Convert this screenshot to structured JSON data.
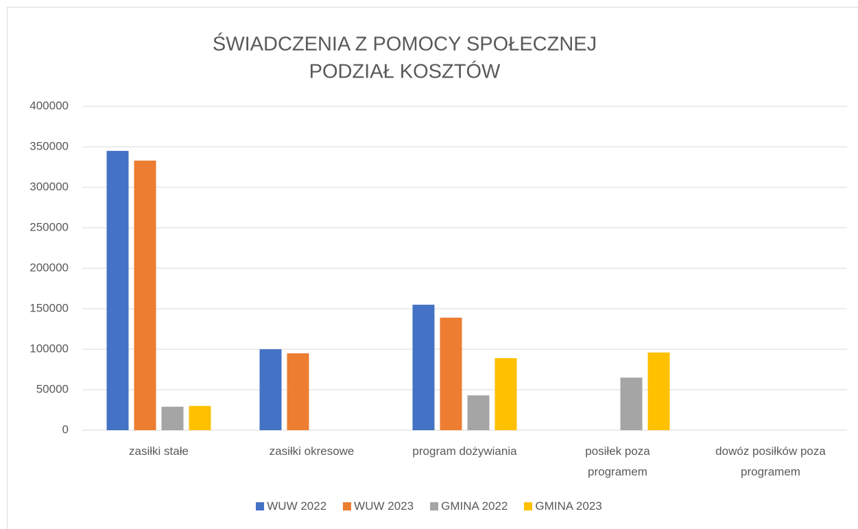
{
  "chart_data": {
    "type": "bar",
    "title": [
      "ŚWIADCZENIA Z POMOCY SPOŁECZNEJ",
      "PODZIAŁ KOSZTÓW"
    ],
    "categories": [
      "zasiłki stałe",
      "zasiłki okresowe",
      "program dożywiania",
      "posiłek poza programem",
      "dowóz posiłków poza programem"
    ],
    "series": [
      {
        "name": "WUW 2022",
        "color": "#4472c4",
        "values": [
          345000,
          100000,
          155000,
          null,
          null
        ]
      },
      {
        "name": "WUW 2023",
        "color": "#ed7d31",
        "values": [
          333000,
          95000,
          139000,
          null,
          null
        ]
      },
      {
        "name": "GMINA 2022",
        "color": "#a5a5a5",
        "values": [
          29000,
          null,
          43000,
          65000,
          null
        ]
      },
      {
        "name": "GMINA 2023",
        "color": "#ffc000",
        "values": [
          30000,
          null,
          89000,
          96000,
          null
        ]
      }
    ],
    "ylim": [
      0,
      400000
    ],
    "yticks": [
      0,
      50000,
      100000,
      150000,
      200000,
      250000,
      300000,
      350000,
      400000
    ],
    "grid": true,
    "legend": "bottom"
  }
}
